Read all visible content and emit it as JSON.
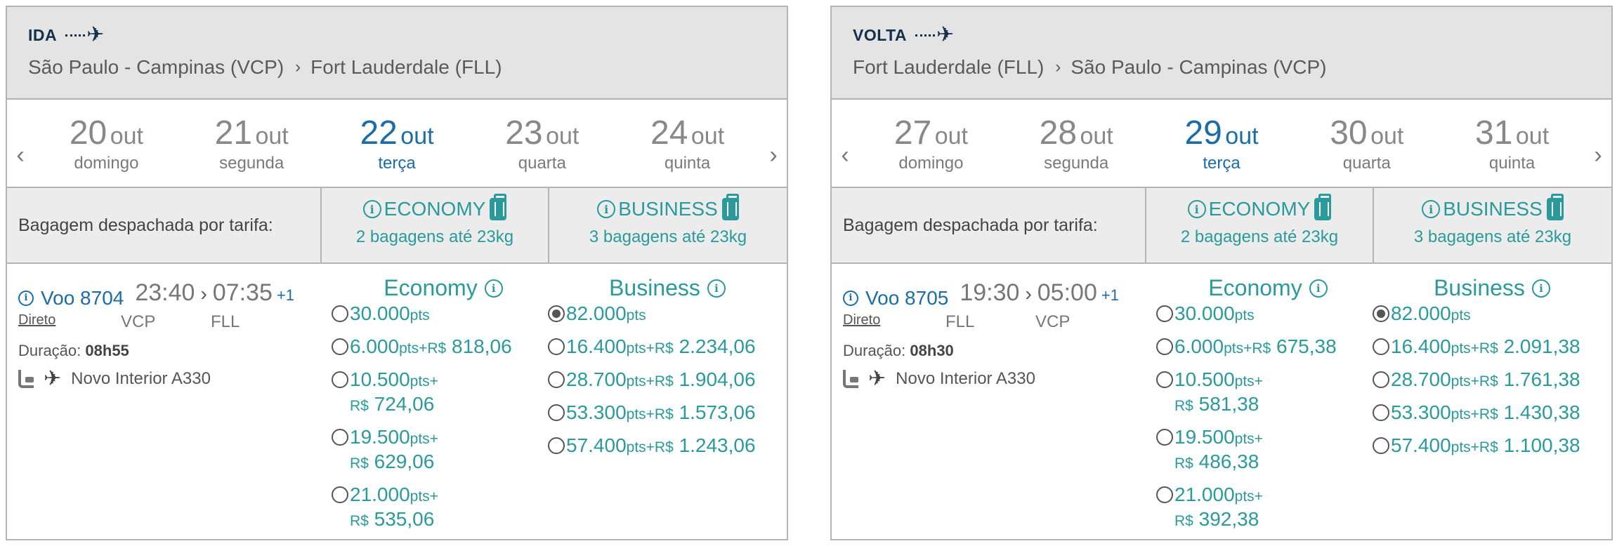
{
  "panels": [
    {
      "direction": "IDA",
      "origin": "São Paulo - Campinas (VCP)",
      "destination": "Fort Lauderdale (FLL)",
      "dates": [
        {
          "day": "20",
          "month": "out",
          "weekday": "domingo",
          "active": false
        },
        {
          "day": "21",
          "month": "out",
          "weekday": "segunda",
          "active": false
        },
        {
          "day": "22",
          "month": "out",
          "weekday": "terça",
          "active": true
        },
        {
          "day": "23",
          "month": "out",
          "weekday": "quarta",
          "active": false
        },
        {
          "day": "24",
          "month": "out",
          "weekday": "quinta",
          "active": false
        }
      ],
      "bag_label": "Bagagem despachada por tarifa:",
      "economy": {
        "name": "ECONOMY",
        "bags": "2 bagagens até 23kg"
      },
      "business": {
        "name": "BUSINESS",
        "bags": "3 bagagens até 23kg"
      },
      "flight": {
        "number": "Voo 8704",
        "depart": "23:40",
        "arrive": "07:35",
        "plus": "+1",
        "type": "Direto",
        "from": "VCP",
        "to": "FLL",
        "duration_label": "Duração:",
        "duration": "08h55",
        "aircraft": "Novo Interior A330"
      },
      "economy_title": "Economy",
      "business_title": "Business",
      "economy_options": [
        {
          "pts": "30.000",
          "unit": "pts",
          "money": "",
          "wrap": false,
          "checked": false
        },
        {
          "pts": "6.000",
          "unit": "pts+",
          "money": "818,06",
          "wrap": false,
          "checked": false
        },
        {
          "pts": "10.500",
          "unit": "pts+",
          "money": "724,06",
          "wrap": true,
          "checked": false
        },
        {
          "pts": "19.500",
          "unit": "pts+",
          "money": "629,06",
          "wrap": true,
          "checked": false
        },
        {
          "pts": "21.000",
          "unit": "pts+",
          "money": "535,06",
          "wrap": true,
          "checked": false
        }
      ],
      "business_options": [
        {
          "pts": "82.000",
          "unit": "pts",
          "money": "",
          "wrap": false,
          "checked": true
        },
        {
          "pts": "16.400",
          "unit": "pts+",
          "money": "2.234,06",
          "wrap": false,
          "checked": false
        },
        {
          "pts": "28.700",
          "unit": "pts+",
          "money": "1.904,06",
          "wrap": false,
          "checked": false
        },
        {
          "pts": "53.300",
          "unit": "pts+",
          "money": "1.573,06",
          "wrap": false,
          "checked": false
        },
        {
          "pts": "57.400",
          "unit": "pts+",
          "money": "1.243,06",
          "wrap": false,
          "checked": false
        }
      ]
    },
    {
      "direction": "VOLTA",
      "origin": "Fort Lauderdale (FLL)",
      "destination": "São Paulo - Campinas (VCP)",
      "dates": [
        {
          "day": "27",
          "month": "out",
          "weekday": "domingo",
          "active": false
        },
        {
          "day": "28",
          "month": "out",
          "weekday": "segunda",
          "active": false
        },
        {
          "day": "29",
          "month": "out",
          "weekday": "terça",
          "active": true
        },
        {
          "day": "30",
          "month": "out",
          "weekday": "quarta",
          "active": false
        },
        {
          "day": "31",
          "month": "out",
          "weekday": "quinta",
          "active": false
        }
      ],
      "bag_label": "Bagagem despachada por tarifa:",
      "economy": {
        "name": "ECONOMY",
        "bags": "2 bagagens até 23kg"
      },
      "business": {
        "name": "BUSINESS",
        "bags": "3 bagagens até 23kg"
      },
      "flight": {
        "number": "Voo 8705",
        "depart": "19:30",
        "arrive": "05:00",
        "plus": "+1",
        "type": "Direto",
        "from": "FLL",
        "to": "VCP",
        "duration_label": "Duração:",
        "duration": "08h30",
        "aircraft": "Novo Interior A330"
      },
      "economy_title": "Economy",
      "business_title": "Business",
      "economy_options": [
        {
          "pts": "30.000",
          "unit": "pts",
          "money": "",
          "wrap": false,
          "checked": false
        },
        {
          "pts": "6.000",
          "unit": "pts+",
          "money": "675,38",
          "wrap": false,
          "checked": false
        },
        {
          "pts": "10.500",
          "unit": "pts+",
          "money": "581,38",
          "wrap": true,
          "checked": false
        },
        {
          "pts": "19.500",
          "unit": "pts+",
          "money": "486,38",
          "wrap": true,
          "checked": false
        },
        {
          "pts": "21.000",
          "unit": "pts+",
          "money": "392,38",
          "wrap": true,
          "checked": false
        }
      ],
      "business_options": [
        {
          "pts": "82.000",
          "unit": "pts",
          "money": "",
          "wrap": false,
          "checked": true
        },
        {
          "pts": "16.400",
          "unit": "pts+",
          "money": "2.091,38",
          "wrap": false,
          "checked": false
        },
        {
          "pts": "28.700",
          "unit": "pts+",
          "money": "1.761,38",
          "wrap": false,
          "checked": false
        },
        {
          "pts": "53.300",
          "unit": "pts+",
          "money": "1.430,38",
          "wrap": false,
          "checked": false
        },
        {
          "pts": "57.400",
          "unit": "pts+",
          "money": "1.100,38",
          "wrap": false,
          "checked": false
        }
      ]
    }
  ],
  "currency": "R$",
  "icons": {
    "plane": "plane-icon",
    "info": "info-icon",
    "bag": "luggage-icon",
    "seat": "seat-icon",
    "prev": "chevron-left-icon",
    "next": "chevron-right-icon"
  },
  "colors": {
    "teal": "#2a9a9a",
    "blue": "#1a6da6",
    "navy": "#14304a",
    "header_bg": "#e4e4e4"
  }
}
